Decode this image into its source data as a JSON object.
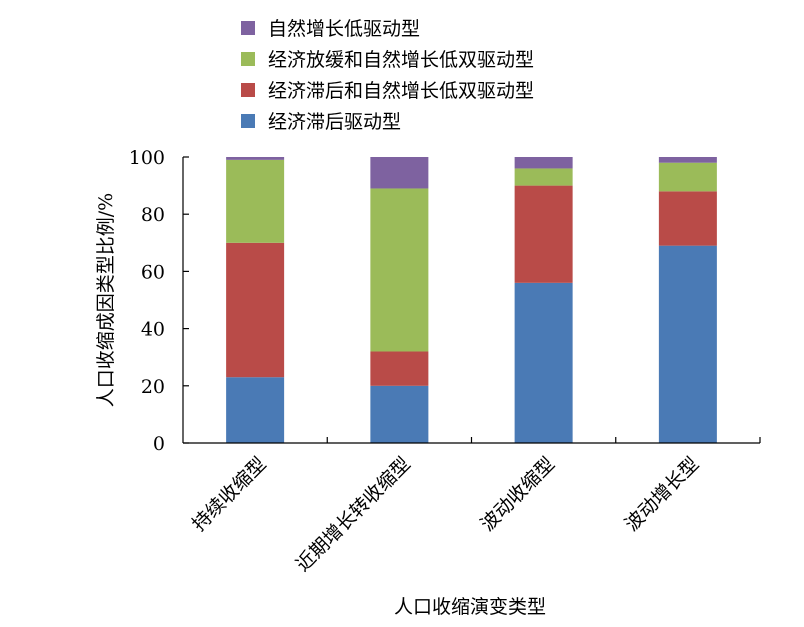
{
  "chart_data": {
    "type": "bar",
    "stacked": true,
    "categories": [
      "持续收缩型",
      "近期增长转收缩型",
      "波动收缩型",
      "波动增长型"
    ],
    "series": [
      {
        "name": "经济滞后驱动型",
        "color": "#4a7ab5",
        "values": [
          23,
          20,
          56,
          69
        ]
      },
      {
        "name": "经济滞后和自然增长低双驱动型",
        "color": "#b94b48",
        "values": [
          47,
          12,
          34,
          19
        ]
      },
      {
        "name": "经济放缓和自然增长低双驱动型",
        "color": "#9bbb59",
        "values": [
          29,
          57,
          6,
          10
        ]
      },
      {
        "name": "自然增长低驱动型",
        "color": "#7e62a0",
        "values": [
          1,
          11,
          4,
          2
        ]
      }
    ],
    "legend_order": [
      "自然增长低驱动型",
      "经济放缓和自然增长低双驱动型",
      "经济滞后和自然增长低双驱动型",
      "经济滞后驱动型"
    ],
    "xlabel": "人口收缩演变类型",
    "ylabel": "人口收缩成因类型比例/%",
    "ylim": [
      0,
      100
    ],
    "yticks": [
      0,
      20,
      40,
      60,
      80,
      100
    ],
    "legend_position": "top",
    "grid": false
  }
}
